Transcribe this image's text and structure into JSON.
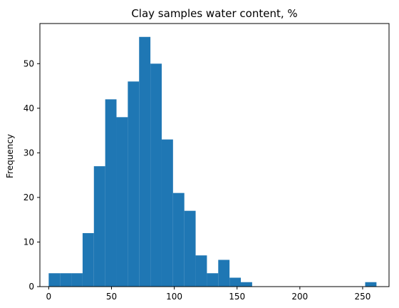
{
  "chart_data": {
    "type": "bar",
    "title": "Clay samples water content, %",
    "xlabel": "",
    "ylabel": "Frequency",
    "bar_color": "#1f77b4",
    "xlim": [
      -7,
      271
    ],
    "ylim": [
      0,
      59
    ],
    "xticks": [
      0,
      50,
      100,
      150,
      200,
      250
    ],
    "yticks": [
      0,
      10,
      20,
      30,
      40,
      50
    ],
    "grid": false,
    "bins": [
      {
        "start": 0,
        "end": 9,
        "value": 3
      },
      {
        "start": 9,
        "end": 18,
        "value": 3
      },
      {
        "start": 18,
        "end": 27,
        "value": 3
      },
      {
        "start": 27,
        "end": 36,
        "value": 12
      },
      {
        "start": 36,
        "end": 45,
        "value": 27
      },
      {
        "start": 45,
        "end": 54,
        "value": 42
      },
      {
        "start": 54,
        "end": 63,
        "value": 38
      },
      {
        "start": 63,
        "end": 72,
        "value": 46
      },
      {
        "start": 72,
        "end": 81,
        "value": 56
      },
      {
        "start": 81,
        "end": 90,
        "value": 50
      },
      {
        "start": 90,
        "end": 99,
        "value": 33
      },
      {
        "start": 99,
        "end": 108,
        "value": 21
      },
      {
        "start": 108,
        "end": 117,
        "value": 17
      },
      {
        "start": 117,
        "end": 126,
        "value": 7
      },
      {
        "start": 126,
        "end": 135,
        "value": 3
      },
      {
        "start": 135,
        "end": 144,
        "value": 6
      },
      {
        "start": 144,
        "end": 153,
        "value": 2
      },
      {
        "start": 153,
        "end": 162,
        "value": 1
      },
      {
        "start": 162,
        "end": 171,
        "value": 0
      },
      {
        "start": 171,
        "end": 180,
        "value": 0
      },
      {
        "start": 180,
        "end": 189,
        "value": 0
      },
      {
        "start": 189,
        "end": 198,
        "value": 0
      },
      {
        "start": 198,
        "end": 207,
        "value": 0
      },
      {
        "start": 207,
        "end": 216,
        "value": 0
      },
      {
        "start": 216,
        "end": 225,
        "value": 0
      },
      {
        "start": 225,
        "end": 234,
        "value": 0
      },
      {
        "start": 234,
        "end": 243,
        "value": 0
      },
      {
        "start": 243,
        "end": 252,
        "value": 0
      },
      {
        "start": 252,
        "end": 261,
        "value": 1
      }
    ]
  }
}
